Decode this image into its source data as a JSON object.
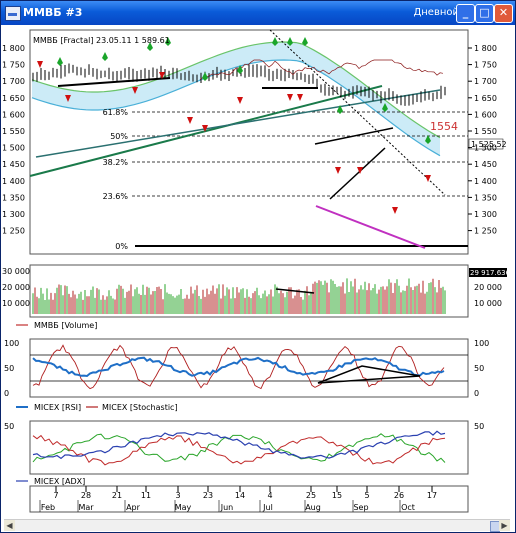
{
  "window": {
    "title": "ММВБ #3",
    "period_label": "Дневной",
    "minimize_glyph": "_",
    "maximize_glyph": "□",
    "close_glyph": "✕"
  },
  "price_panel": {
    "legend": "ММВБ [Fractal] 23.05.11 1 589.61",
    "y_ticks": [
      "1 800",
      "1 750",
      "1 700",
      "1 650",
      "1 600",
      "1 550",
      "1 500",
      "1 450",
      "1 400",
      "1 350",
      "1 300",
      "1 250"
    ],
    "fib_levels": [
      "61.8%",
      "50%",
      "38.2%",
      "23.6%",
      "0%"
    ],
    "target_label": "1554",
    "last_price": "1 525.52"
  },
  "volume_panel": {
    "legend": "ММВБ [Volume]",
    "y_ticks": [
      "30 000",
      "20 000",
      "10 000"
    ],
    "last_value": "29 917.6367"
  },
  "osc_panel": {
    "legend_rsi": "MICEX [RSI]",
    "legend_stoch": "MICEX [Stochastic]",
    "y_ticks": [
      "100",
      "50",
      "0"
    ]
  },
  "adx_panel": {
    "legend": "MICEX [ADX]",
    "y_ticks": [
      "50"
    ]
  },
  "x_axis": {
    "days": [
      "7",
      "28",
      "21",
      "11",
      "3",
      "23",
      "14",
      "4",
      "25",
      "15",
      "5",
      "26",
      "17"
    ],
    "months": [
      "Feb",
      "Mar",
      "Apr",
      "May",
      "Jun",
      "Jul",
      "Aug",
      "Sep",
      "Oct"
    ]
  },
  "colors": {
    "title_bar": "#0a5bd8",
    "rsi": "#1f6fc7",
    "stochastic": "#b02020",
    "adx_line": "#2a40b0",
    "di_plus": "#2aa52a",
    "di_minus": "#c02a2a",
    "fractal_up": "#1aa52a",
    "fractal_down": "#d01010",
    "target": "#cc3333"
  }
}
